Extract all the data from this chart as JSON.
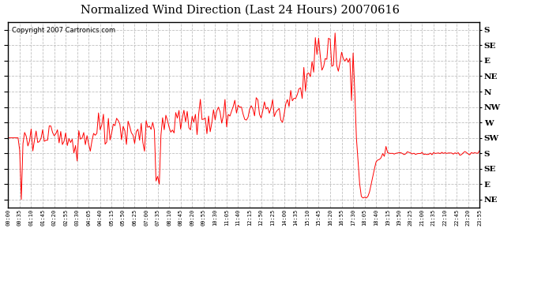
{
  "title": "Normalized Wind Direction (Last 24 Hours) 20070616",
  "copyright": "Copyright 2007 Cartronics.com",
  "line_color": "#ff0000",
  "bg_color": "#ffffff",
  "plot_bg_color": "#ffffff",
  "grid_color": "#c0c0c0",
  "ytick_labels_right": [
    "S",
    "SE",
    "E",
    "NE",
    "N",
    "NW",
    "W",
    "SW",
    "S",
    "SE",
    "E",
    "NE"
  ],
  "ytick_values": [
    11,
    10,
    9,
    8,
    7,
    6,
    5,
    4,
    3,
    2,
    1,
    0
  ],
  "ylim": [
    -0.5,
    11.5
  ],
  "n_points": 288,
  "xtick_step": 7,
  "points_per_5min": 1
}
